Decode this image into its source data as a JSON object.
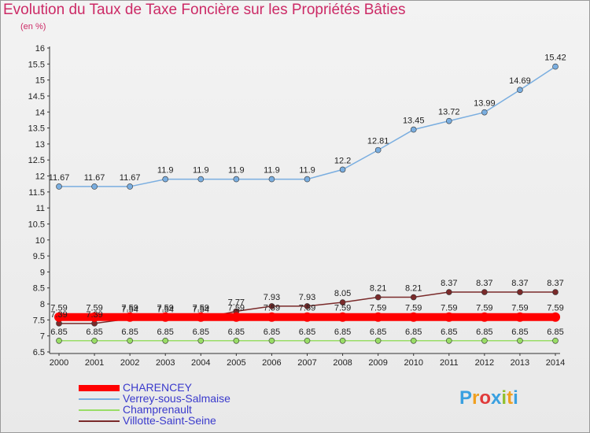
{
  "chart_data": {
    "type": "line",
    "title": "Evolution du Taux de Taxe Foncière sur les Propriétés Bâties",
    "ylabel": "(en %)",
    "ylim": [
      6.5,
      16
    ],
    "yticks": [
      "6.5",
      "7",
      "7.5",
      "8",
      "8.5",
      "9",
      "9.5",
      "10",
      "10.5",
      "11",
      "11.5",
      "12",
      "12.5",
      "13",
      "13.5",
      "14",
      "14.5",
      "15",
      "15.5",
      "16"
    ],
    "categories": [
      "2000",
      "2001",
      "2002",
      "2003",
      "2004",
      "2005",
      "2006",
      "2007",
      "2008",
      "2009",
      "2010",
      "2011",
      "2012",
      "2013",
      "2014"
    ],
    "series": [
      {
        "name": "CHARENCEY",
        "color": "#ff0000",
        "values": [
          7.59,
          7.59,
          7.59,
          7.59,
          7.59,
          7.59,
          7.59,
          7.59,
          7.59,
          7.59,
          7.59,
          7.59,
          7.59,
          7.59,
          7.59
        ],
        "labels": [
          "7.59",
          "7.59",
          "7.59",
          "7.59",
          "7.59",
          "7.59",
          "7.59",
          "7.59",
          "7.59",
          "7.59",
          "7.59",
          "7.59",
          "7.59",
          "7.59",
          "7.59"
        ]
      },
      {
        "name": "Verrey-sous-Salmaise",
        "color": "#7aaee0",
        "values": [
          11.67,
          11.67,
          11.67,
          11.9,
          11.9,
          11.9,
          11.9,
          11.9,
          12.2,
          12.81,
          13.45,
          13.72,
          13.99,
          14.69,
          15.42
        ],
        "labels": [
          "11.67",
          "11.67",
          "11.67",
          "11.9",
          "11.9",
          "11.9",
          "11.9",
          "11.9",
          "12.2",
          "12.81",
          "13.45",
          "13.72",
          "13.99",
          "14.69",
          "15.42"
        ]
      },
      {
        "name": "Champrenault",
        "color": "#99dd66",
        "values": [
          6.85,
          6.85,
          6.85,
          6.85,
          6.85,
          6.85,
          6.85,
          6.85,
          6.85,
          6.85,
          6.85,
          6.85,
          6.85,
          6.85,
          6.85
        ],
        "labels": [
          "6.85",
          "6.85",
          "6.85",
          "6.85",
          "6.85",
          "6.85",
          "6.85",
          "6.85",
          "6.85",
          "6.85",
          "6.85",
          "6.85",
          "6.85",
          "6.85",
          "6.85"
        ]
      },
      {
        "name": "Villotte-Saint-Seine",
        "color": "#7a2a2a",
        "values": [
          7.39,
          7.39,
          7.54,
          7.54,
          7.54,
          7.77,
          7.93,
          7.93,
          8.05,
          8.21,
          8.21,
          8.37,
          8.37,
          8.37,
          8.37
        ],
        "labels": [
          "7.39",
          "7.39",
          "7.54",
          "7.54",
          "7.54",
          "7.77",
          "7.93",
          "7.93",
          "8.05",
          "8.21",
          "8.21",
          "8.37",
          "8.37",
          "8.37",
          "8.37"
        ]
      }
    ]
  },
  "logo": {
    "letters": [
      "P",
      "r",
      "o",
      "x",
      "i",
      "t",
      "i"
    ],
    "colors": [
      "#3aa0e0",
      "#f0a020",
      "#e03a3a",
      "#3aa0e0",
      "#90c030",
      "#f0a020",
      "#3aa0e0"
    ]
  }
}
